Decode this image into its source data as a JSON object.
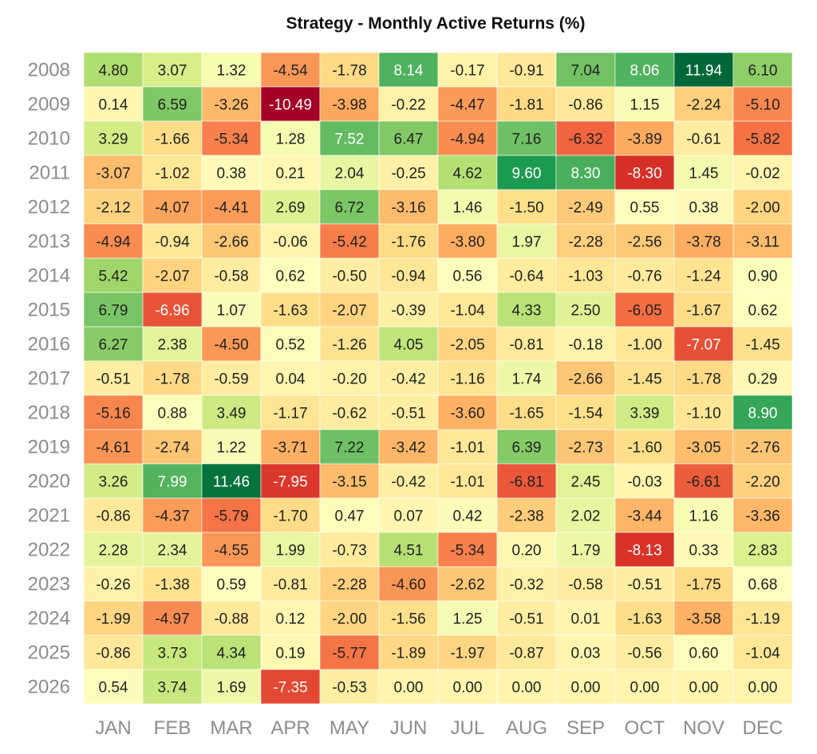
{
  "chart_data": {
    "type": "heatmap",
    "title": "Strategy - Monthly Active Returns (%)",
    "xlabel": "",
    "ylabel": "",
    "colormap": "RdYlGn",
    "value_range": [
      -10.49,
      11.94
    ],
    "colormap_stops": [
      "#a50026",
      "#d73027",
      "#f46d43",
      "#fdae61",
      "#fee08b",
      "#ffffbf",
      "#d9ef8b",
      "#a6d96a",
      "#66bd63",
      "#1a9850",
      "#006837"
    ],
    "label_colors": {
      "dark_text": "#222222",
      "light_text": "#ffffff"
    },
    "x": [
      "JAN",
      "FEB",
      "MAR",
      "APR",
      "MAY",
      "JUN",
      "JUL",
      "AUG",
      "SEP",
      "OCT",
      "NOV",
      "DEC"
    ],
    "y": [
      "2008",
      "2009",
      "2010",
      "2011",
      "2012",
      "2013",
      "2014",
      "2015",
      "2016",
      "2017",
      "2018",
      "2019",
      "2020",
      "2021",
      "2022",
      "2023",
      "2024",
      "2025",
      "2026"
    ],
    "values": [
      [
        4.8,
        3.07,
        1.32,
        -4.54,
        -1.78,
        8.14,
        -0.17,
        -0.91,
        7.04,
        8.06,
        11.94,
        6.1
      ],
      [
        0.14,
        6.59,
        -3.26,
        -10.49,
        -3.98,
        -0.22,
        -4.47,
        -1.81,
        -0.86,
        1.15,
        -2.24,
        -5.1
      ],
      [
        3.29,
        -1.66,
        -5.34,
        1.28,
        7.52,
        6.47,
        -4.94,
        7.16,
        -6.32,
        -3.89,
        -0.61,
        -5.82
      ],
      [
        -3.07,
        -1.02,
        0.38,
        0.21,
        2.04,
        -0.25,
        4.62,
        9.6,
        8.3,
        -8.3,
        1.45,
        -0.02
      ],
      [
        -2.12,
        -4.07,
        -4.41,
        2.69,
        6.72,
        -3.16,
        1.46,
        -1.5,
        -2.49,
        0.55,
        0.38,
        -2.0
      ],
      [
        -4.94,
        -0.94,
        -2.66,
        -0.06,
        -5.42,
        -1.76,
        -3.8,
        1.97,
        -2.28,
        -2.56,
        -3.78,
        -3.11
      ],
      [
        5.42,
        -2.07,
        -0.58,
        0.62,
        -0.5,
        -0.94,
        0.56,
        -0.64,
        -1.03,
        -0.76,
        -1.24,
        0.9
      ],
      [
        6.79,
        -6.96,
        1.07,
        -1.63,
        -2.07,
        -0.39,
        -1.04,
        4.33,
        2.5,
        -6.05,
        -1.67,
        0.62
      ],
      [
        6.27,
        2.38,
        -4.5,
        0.52,
        -1.26,
        4.05,
        -2.05,
        -0.81,
        -0.18,
        -1.0,
        -7.07,
        -1.45
      ],
      [
        -0.51,
        -1.78,
        -0.59,
        0.04,
        -0.2,
        -0.42,
        -1.16,
        1.74,
        -2.66,
        -1.45,
        -1.78,
        0.29
      ],
      [
        -5.16,
        0.88,
        3.49,
        -1.17,
        -0.62,
        -0.51,
        -3.6,
        -1.65,
        -1.54,
        3.39,
        -1.1,
        8.9
      ],
      [
        -4.61,
        -2.74,
        1.22,
        -3.71,
        7.22,
        -3.42,
        -1.01,
        6.39,
        -2.73,
        -1.6,
        -3.05,
        -2.76
      ],
      [
        3.26,
        7.99,
        11.46,
        -7.95,
        -3.15,
        -0.42,
        -1.01,
        -6.81,
        2.45,
        -0.03,
        -6.61,
        -2.2
      ],
      [
        -0.86,
        -4.37,
        -5.79,
        -1.7,
        0.47,
        0.07,
        0.42,
        -2.38,
        2.02,
        -3.44,
        1.16,
        -3.36
      ],
      [
        2.28,
        2.34,
        -4.55,
        1.99,
        -0.73,
        4.51,
        -5.34,
        0.2,
        1.79,
        -8.13,
        0.33,
        2.83
      ],
      [
        -0.26,
        -1.38,
        0.59,
        -0.81,
        -2.28,
        -4.6,
        -2.62,
        -0.32,
        -0.58,
        -0.51,
        -1.75,
        0.68
      ],
      [
        -1.99,
        -4.97,
        -0.88,
        0.12,
        -2.0,
        -1.56,
        1.25,
        -0.51,
        0.01,
        -1.63,
        -3.58,
        -1.19
      ],
      [
        -0.86,
        3.73,
        4.34,
        0.19,
        -5.77,
        -1.89,
        -1.97,
        -0.87,
        0.03,
        -0.56,
        0.6,
        -1.04
      ],
      [
        0.54,
        3.74,
        1.69,
        -7.35,
        -0.53,
        0.0,
        0.0,
        0.0,
        0.0,
        0.0,
        0.0,
        0.0
      ]
    ],
    "value_format": "2 decimals",
    "grid": false,
    "legend": "none"
  }
}
